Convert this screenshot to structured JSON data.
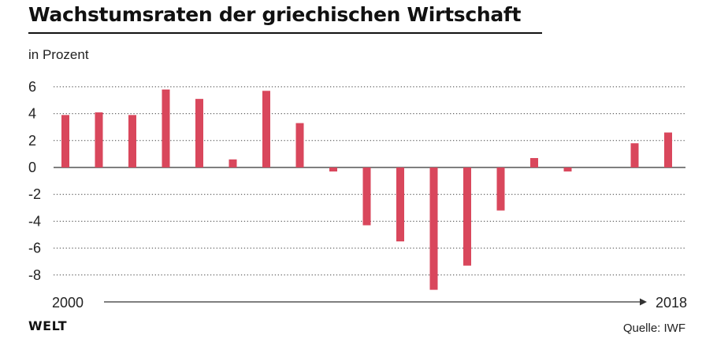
{
  "title": "Wachstumsraten der griechischen Wirtschaft",
  "unit_label": "in Prozent",
  "brand": "WELT",
  "source": "Quelle: IWF",
  "colors": {
    "bar": "#d9475c",
    "axis": "#333333",
    "grid": "#444444",
    "text": "#1a1a1a"
  },
  "chart_data": {
    "type": "bar",
    "categories": [
      "2000",
      "2001",
      "2002",
      "2003",
      "2004",
      "2005",
      "2006",
      "2007",
      "2008",
      "2009",
      "2010",
      "2011",
      "2012",
      "2013",
      "2014",
      "2015",
      "2016",
      "2017",
      "2018"
    ],
    "values": [
      3.9,
      4.1,
      3.9,
      5.8,
      5.1,
      0.6,
      5.7,
      3.3,
      -0.3,
      -4.3,
      -5.5,
      -9.1,
      -7.3,
      -3.2,
      0.7,
      -0.3,
      0.0,
      1.8,
      2.6
    ],
    "ylim": [
      -9,
      6
    ],
    "yticks": [
      6,
      4,
      2,
      0,
      -2,
      -4,
      -6,
      -8
    ],
    "x_start_label": "2000",
    "x_end_label": "2018",
    "grid": true,
    "grid_style": "dotted"
  }
}
